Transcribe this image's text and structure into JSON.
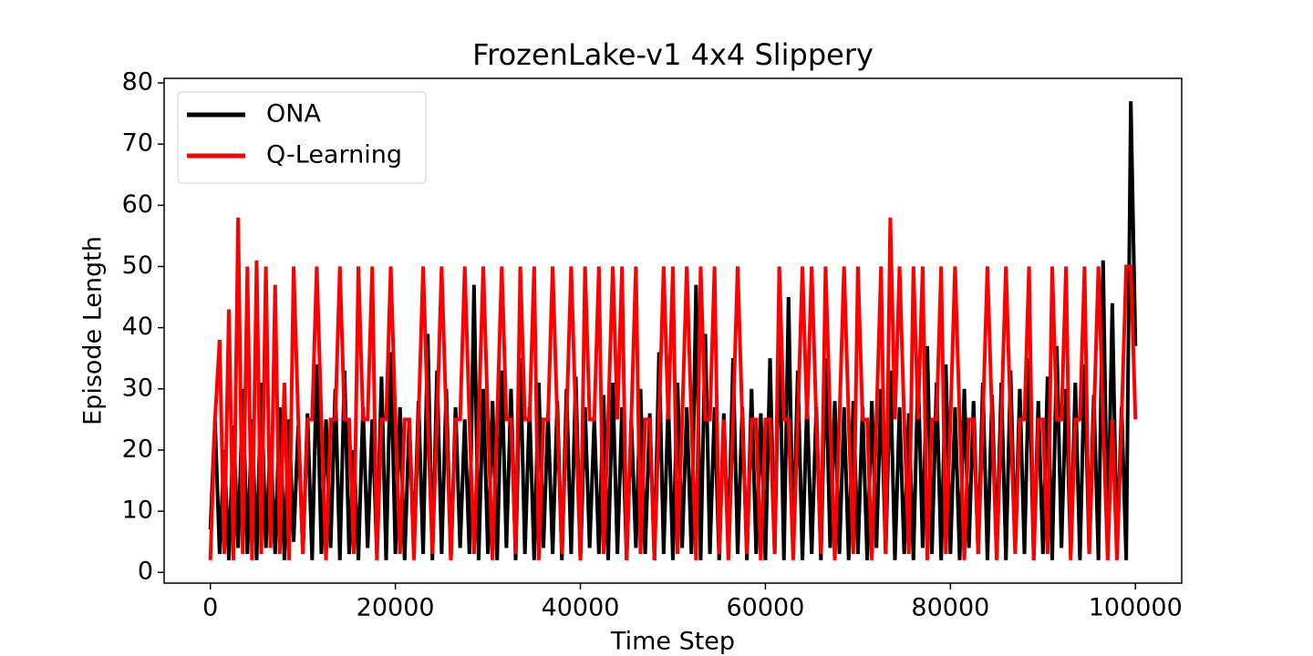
{
  "chart_data": {
    "type": "line",
    "title": "FrozenLake-v1 4x4 Slippery",
    "x_label": "Time Step",
    "y_label": "Episode Length",
    "xlim": [
      -5000,
      105000
    ],
    "ylim": [
      -1.75,
      80.75
    ],
    "xticks": [
      0,
      20000,
      40000,
      60000,
      80000,
      100000
    ],
    "yticks": [
      0,
      10,
      20,
      30,
      40,
      50,
      60,
      70,
      80
    ],
    "legend": "upper left",
    "x": [
      0,
      500,
      1000,
      1500,
      2000,
      2500,
      3000,
      3500,
      4000,
      4500,
      5000,
      5500,
      6000,
      6500,
      7000,
      7500,
      8000,
      8500,
      9000,
      9500,
      10000,
      10500,
      11000,
      11500,
      12000,
      12500,
      13000,
      13500,
      14000,
      14500,
      15000,
      15500,
      16000,
      16500,
      17000,
      17500,
      18000,
      18500,
      19000,
      19500,
      20000,
      20500,
      21000,
      21500,
      22000,
      22500,
      23000,
      23500,
      24000,
      24500,
      25000,
      25500,
      26000,
      26500,
      27000,
      27500,
      28000,
      28500,
      29000,
      29500,
      30000,
      30500,
      31000,
      31500,
      32000,
      32500,
      33000,
      33500,
      34000,
      34500,
      35000,
      35500,
      36000,
      36500,
      37000,
      37500,
      38000,
      38500,
      39000,
      39500,
      40000,
      40500,
      41000,
      41500,
      42000,
      42500,
      43000,
      43500,
      44000,
      44500,
      45000,
      45500,
      46000,
      46500,
      47000,
      47500,
      48000,
      48500,
      49000,
      49500,
      50000,
      50500,
      51000,
      51500,
      52000,
      52500,
      53000,
      53500,
      54000,
      54500,
      55000,
      55500,
      56000,
      56500,
      57000,
      57500,
      58000,
      58500,
      59000,
      59500,
      60000,
      60500,
      61000,
      61500,
      62000,
      62500,
      63000,
      63500,
      64000,
      64500,
      65000,
      65500,
      66000,
      66500,
      67000,
      67500,
      68000,
      68500,
      69000,
      69500,
      70000,
      70500,
      71000,
      71500,
      72000,
      72500,
      73000,
      73500,
      74000,
      74500,
      75000,
      75500,
      76000,
      76500,
      77000,
      77500,
      78000,
      78500,
      79000,
      79500,
      80000,
      80500,
      81000,
      81500,
      82000,
      82500,
      83000,
      83500,
      84000,
      84500,
      85000,
      85500,
      86000,
      86500,
      87000,
      87500,
      88000,
      88500,
      89000,
      89500,
      90000,
      90500,
      91000,
      91500,
      92000,
      92500,
      93000,
      93500,
      94000,
      94500,
      95000,
      95500,
      96000,
      96500,
      97000,
      97500,
      98000,
      98500,
      99000,
      99500,
      100000
    ],
    "series": [
      {
        "name": "ONA",
        "color": "#000000",
        "values": [
          7,
          25,
          3,
          20,
          2,
          24,
          4,
          30,
          3,
          25,
          2,
          31,
          4,
          22,
          3,
          27,
          2,
          25,
          5,
          24,
          3,
          26,
          2,
          34,
          3,
          25,
          4,
          30,
          2,
          33,
          3,
          20,
          2,
          27,
          4,
          25,
          3,
          32,
          2,
          36,
          3,
          27,
          2,
          25,
          4,
          28,
          3,
          39,
          2,
          33,
          3,
          30,
          2,
          27,
          4,
          25,
          3,
          47,
          2,
          30,
          3,
          28,
          2,
          33,
          4,
          30,
          2,
          35,
          3,
          27,
          2,
          31,
          4,
          26,
          3,
          28,
          2,
          30,
          3,
          32,
          2,
          27,
          4,
          25,
          3,
          29,
          2,
          31,
          3,
          27,
          2,
          25,
          4,
          30,
          3,
          26,
          2,
          36,
          3,
          28,
          2,
          31,
          4,
          27,
          3,
          47,
          2,
          39,
          3,
          27,
          2,
          26,
          4,
          35,
          3,
          27,
          2,
          30,
          3,
          26,
          2,
          35,
          3,
          40,
          2,
          45,
          4,
          33,
          2,
          28,
          3,
          27,
          2,
          35,
          4,
          28,
          3,
          27,
          2,
          28,
          3,
          27,
          2,
          28,
          4,
          30,
          3,
          33,
          2,
          27,
          3,
          26,
          2,
          33,
          4,
          37,
          3,
          31,
          2,
          34,
          3,
          27,
          2,
          30,
          4,
          28,
          3,
          31,
          2,
          29,
          3,
          31,
          2,
          33,
          4,
          30,
          3,
          35,
          2,
          28,
          3,
          32,
          2,
          37,
          4,
          30,
          3,
          31,
          2,
          34,
          3,
          29,
          2,
          51,
          4,
          44,
          3,
          27,
          2,
          77,
          37
        ]
      },
      {
        "name": "Q-Learning",
        "color": "#ff0000",
        "values": [
          2,
          25,
          38,
          3,
          43,
          2,
          58,
          3,
          50,
          2,
          51,
          3,
          50,
          4,
          47,
          3,
          31,
          2,
          50,
          25,
          3,
          25,
          25,
          50,
          25,
          2,
          25,
          25,
          50,
          25,
          25,
          3,
          50,
          25,
          25,
          50,
          2,
          25,
          25,
          50,
          25,
          3,
          25,
          25,
          2,
          25,
          50,
          25,
          3,
          25,
          50,
          25,
          2,
          25,
          25,
          50,
          25,
          3,
          25,
          50,
          25,
          2,
          25,
          50,
          25,
          25,
          3,
          50,
          25,
          25,
          50,
          2,
          25,
          25,
          50,
          25,
          3,
          25,
          50,
          25,
          2,
          50,
          25,
          25,
          50,
          3,
          25,
          50,
          25,
          50,
          2,
          25,
          50,
          3,
          25,
          25,
          2,
          25,
          50,
          25,
          50,
          3,
          25,
          50,
          25,
          2,
          50,
          25,
          25,
          50,
          3,
          25,
          2,
          25,
          50,
          25,
          3,
          25,
          25,
          2,
          25,
          25,
          3,
          50,
          25,
          25,
          2,
          25,
          50,
          25,
          50,
          25,
          3,
          50,
          25,
          2,
          25,
          50,
          25,
          3,
          50,
          25,
          25,
          2,
          25,
          50,
          3,
          58,
          25,
          50,
          25,
          3,
          50,
          25,
          50,
          2,
          25,
          25,
          50,
          3,
          25,
          50,
          25,
          2,
          25,
          25,
          3,
          25,
          50,
          25,
          2,
          25,
          50,
          25,
          3,
          25,
          25,
          50,
          2,
          25,
          25,
          3,
          50,
          25,
          25,
          50,
          2,
          25,
          25,
          50,
          3,
          25,
          50,
          25,
          2,
          25,
          2,
          25,
          50,
          50,
          25
        ]
      }
    ]
  }
}
